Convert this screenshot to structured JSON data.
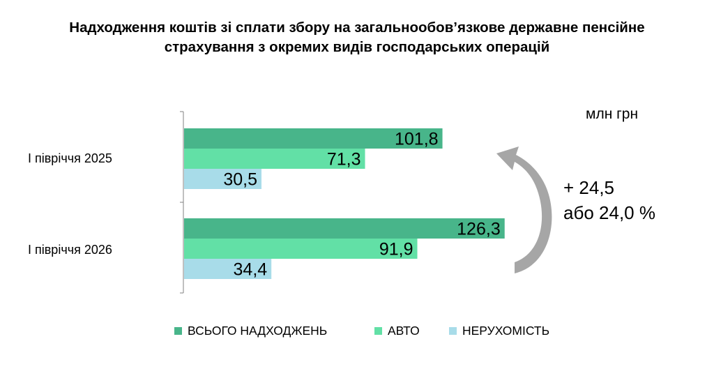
{
  "title_line1": "Надходження коштів зі сплати збору на загальнообов’язкове державне пенсійне",
  "title_line2": "страхування з окремих видів господарських операцій",
  "unit": "млн грн",
  "change_line1": "+ 24,5",
  "change_line2": "або 24,0 %",
  "colors": {
    "total": "#48b58a",
    "auto": "#62e0a6",
    "realty": "#a8dce9",
    "arrow": "#a6a6a6",
    "axis": "#808080"
  },
  "chart_data": {
    "type": "bar",
    "orientation": "horizontal",
    "categories": [
      "I півріччя 2025",
      "I півріччя 2026"
    ],
    "series": [
      {
        "name": "ВСЬОГО НАДХОДЖЕНЬ",
        "values": [
          101.8,
          126.3
        ],
        "labels": [
          "101,8",
          "126,3"
        ]
      },
      {
        "name": "АВТО",
        "values": [
          71.3,
          91.9
        ],
        "labels": [
          "71,3",
          "91,9"
        ]
      },
      {
        "name": "НЕРУХОМІСТЬ",
        "values": [
          30.5,
          34.4
        ],
        "labels": [
          "30,5",
          "34,4"
        ]
      }
    ],
    "xlim": [
      0,
      140
    ],
    "grid": false,
    "legend_position": "bottom"
  }
}
